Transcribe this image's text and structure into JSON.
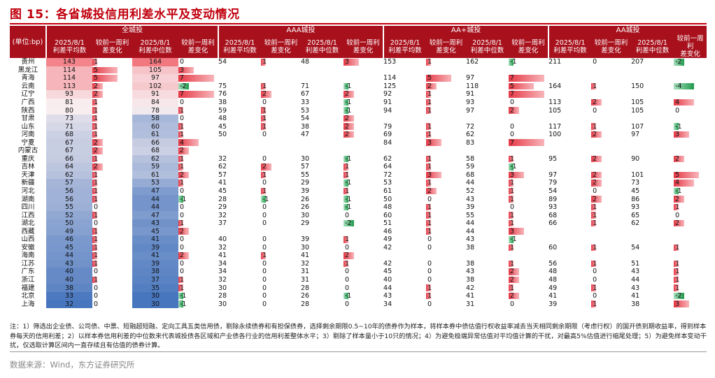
{
  "title": "图 15：各省城投信用利差水平及变动情况",
  "header": {
    "unit": "(单位:bp)",
    "groups": [
      "全城投",
      "AAA城投",
      "AA+城投",
      "AA城投"
    ],
    "sub": [
      "2025/8/1\n利差平均数",
      "较前一周利\n差变化",
      "2025/8/1\n利差中位数",
      "较前一周利\n差变化"
    ]
  },
  "rows": [
    {
      "p": "贵州",
      "all": [
        143,
        1,
        164,
        0
      ],
      "aaa": [
        54,
        1,
        48,
        3
      ],
      "aap": [
        153,
        1,
        162,
        -1
      ],
      "aa": [
        211,
        0,
        207,
        -2
      ]
    },
    {
      "p": "黑龙江",
      "all": [
        114,
        5,
        105,
        3
      ],
      "aaa": [
        null,
        null,
        null,
        null
      ],
      "aap": [
        null,
        null,
        null,
        null
      ],
      "aa": [
        null,
        null,
        null,
        null
      ]
    },
    {
      "p": "青海",
      "all": [
        114,
        5,
        97,
        7
      ],
      "aaa": [
        null,
        null,
        null,
        null
      ],
      "aap": [
        114,
        5,
        97,
        7
      ],
      "aa": [
        null,
        null,
        null,
        null
      ]
    },
    {
      "p": "云南",
      "all": [
        113,
        2,
        102,
        -2
      ],
      "aaa": [
        75,
        1,
        71,
        -1
      ],
      "aap": [
        125,
        2,
        118,
        5
      ],
      "aa": [
        164,
        1,
        150,
        -4
      ]
    },
    {
      "p": "辽宁",
      "all": [
        93,
        2,
        91,
        7
      ],
      "aaa": [
        76,
        2,
        67,
        2
      ],
      "aap": [
        92,
        1,
        91,
        7
      ],
      "aa": [
        null,
        null,
        null,
        null
      ]
    },
    {
      "p": "广西",
      "all": [
        81,
        1,
        84,
        0
      ],
      "aaa": [
        38,
        0,
        33,
        -1
      ],
      "aap": [
        91,
        1,
        93,
        0
      ],
      "aa": [
        113,
        2,
        105,
        4
      ]
    },
    {
      "p": "陕西",
      "all": [
        80,
        1,
        78,
        1
      ],
      "aaa": [
        59,
        1,
        53,
        -1
      ],
      "aap": [
        94,
        1,
        97,
        2
      ],
      "aa": [
        105,
        0,
        105,
        0
      ]
    },
    {
      "p": "甘肃",
      "all": [
        73,
        1,
        58,
        0
      ],
      "aaa": [
        48,
        1,
        54,
        2
      ],
      "aap": [
        null,
        null,
        null,
        null
      ],
      "aa": [
        null,
        null,
        null,
        null
      ]
    },
    {
      "p": "山东",
      "all": [
        71,
        1,
        60,
        1
      ],
      "aaa": [
        45,
        1,
        38,
        2
      ],
      "aap": [
        79,
        1,
        72,
        0
      ],
      "aa": [
        117,
        1,
        107,
        -1
      ]
    },
    {
      "p": "河南",
      "all": [
        68,
        1,
        61,
        1
      ],
      "aaa": [
        50,
        0,
        47,
        2
      ],
      "aap": [
        69,
        1,
        62,
        0
      ],
      "aa": [
        100,
        2,
        97,
        3
      ]
    },
    {
      "p": "宁夏",
      "all": [
        67,
        2,
        66,
        4
      ],
      "aaa": [
        null,
        null,
        null,
        null
      ],
      "aap": [
        84,
        3,
        83,
        7
      ],
      "aa": [
        null,
        null,
        null,
        null
      ]
    },
    {
      "p": "内蒙古",
      "all": [
        67,
        2,
        68,
        2
      ],
      "aaa": [
        null,
        null,
        null,
        null
      ],
      "aap": [
        null,
        null,
        null,
        null
      ],
      "aa": [
        null,
        null,
        null,
        null
      ]
    },
    {
      "p": "重庆",
      "all": [
        66,
        1,
        62,
        1
      ],
      "aaa": [
        32,
        0,
        30,
        -1
      ],
      "aap": [
        62,
        1,
        58,
        1
      ],
      "aa": [
        95,
        2,
        90,
        2
      ]
    },
    {
      "p": "吉林",
      "all": [
        64,
        2,
        59,
        1
      ],
      "aaa": [
        62,
        2,
        57,
        1
      ],
      "aap": [
        64,
        1,
        59,
        -1
      ],
      "aa": [
        null,
        null,
        null,
        null
      ]
    },
    {
      "p": "天津",
      "all": [
        62,
        1,
        61,
        2
      ],
      "aaa": [
        57,
        1,
        55,
        1
      ],
      "aap": [
        72,
        3,
        68,
        3
      ],
      "aa": [
        97,
        2,
        101,
        5
      ]
    },
    {
      "p": "新疆",
      "all": [
        57,
        1,
        53,
        1
      ],
      "aaa": [
        41,
        0,
        29,
        -1
      ],
      "aap": [
        53,
        1,
        44,
        1
      ],
      "aa": [
        79,
        2,
        73,
        4
      ]
    },
    {
      "p": "河北",
      "all": [
        56,
        1,
        47,
        0
      ],
      "aaa": [
        45,
        1,
        39,
        1
      ],
      "aap": [
        61,
        2,
        52,
        1
      ],
      "aa": [
        54,
        0,
        45,
        -1
      ]
    },
    {
      "p": "湖南",
      "all": [
        56,
        1,
        44,
        -1
      ],
      "aaa": [
        28,
        -1,
        26,
        -1
      ],
      "aap": [
        50,
        0,
        43,
        1
      ],
      "aa": [
        89,
        2,
        86,
        2
      ]
    },
    {
      "p": "四川",
      "all": [
        55,
        0,
        44,
        0
      ],
      "aaa": [
        29,
        0,
        26,
        -1
      ],
      "aap": [
        48,
        1,
        39,
        0
      ],
      "aa": [
        93,
        1,
        93,
        1
      ]
    },
    {
      "p": "江西",
      "all": [
        52,
        1,
        47,
        0
      ],
      "aaa": [
        32,
        0,
        30,
        0
      ],
      "aap": [
        60,
        1,
        55,
        1
      ],
      "aa": [
        68,
        1,
        65,
        0
      ]
    },
    {
      "p": "湖北",
      "all": [
        50,
        0,
        43,
        1
      ],
      "aaa": [
        37,
        0,
        29,
        -2
      ],
      "aap": [
        51,
        1,
        44,
        1
      ],
      "aa": [
        66,
        1,
        62,
        2
      ]
    },
    {
      "p": "西藏",
      "all": [
        49,
        1,
        45,
        2
      ],
      "aaa": [
        null,
        null,
        null,
        null
      ],
      "aap": [
        46,
        1,
        44,
        3
      ],
      "aa": [
        null,
        null,
        null,
        null
      ]
    },
    {
      "p": "山西",
      "all": [
        46,
        1,
        41,
        0
      ],
      "aaa": [
        40,
        0,
        39,
        1
      ],
      "aap": [
        49,
        0,
        43,
        -1
      ],
      "aa": [
        null,
        null,
        null,
        null
      ]
    },
    {
      "p": "安徽",
      "all": [
        45,
        1,
        39,
        0
      ],
      "aaa": [
        32,
        0,
        30,
        0
      ],
      "aap": [
        42,
        0,
        38,
        1
      ],
      "aa": [
        60,
        1,
        54,
        1
      ]
    },
    {
      "p": "海南",
      "all": [
        44,
        1,
        41,
        2
      ],
      "aaa": [
        41,
        1,
        41,
        2
      ],
      "aap": [
        null,
        null,
        null,
        null
      ],
      "aa": [
        null,
        null,
        null,
        null
      ]
    },
    {
      "p": "江苏",
      "all": [
        43,
        1,
        39,
        0
      ],
      "aaa": [
        34,
        0,
        32,
        1
      ],
      "aap": [
        42,
        0,
        38,
        1
      ],
      "aa": [
        56,
        1,
        51,
        1
      ]
    },
    {
      "p": "广东",
      "all": [
        40,
        0,
        38,
        0
      ],
      "aaa": [
        34,
        0,
        31,
        0
      ],
      "aap": [
        45,
        0,
        43,
        2
      ],
      "aa": [
        48,
        0,
        43,
        1
      ]
    },
    {
      "p": "浙江",
      "all": [
        40,
        1,
        37,
        1
      ],
      "aaa": [
        32,
        0,
        31,
        0
      ],
      "aap": [
        40,
        0,
        38,
        2
      ],
      "aa": [
        48,
        0,
        44,
        1
      ]
    },
    {
      "p": "福建",
      "all": [
        38,
        0,
        35,
        1
      ],
      "aaa": [
        30,
        0,
        28,
        0
      ],
      "aap": [
        44,
        1,
        42,
        1
      ],
      "aa": [
        49,
        1,
        43,
        1
      ]
    },
    {
      "p": "北京",
      "all": [
        33,
        0,
        30,
        -1
      ],
      "aaa": [
        28,
        0,
        26,
        -1
      ],
      "aap": [
        43,
        1,
        41,
        2
      ],
      "aa": [
        41,
        0,
        41,
        -2
      ]
    },
    {
      "p": "上海",
      "all": [
        32,
        0,
        30,
        -1
      ],
      "aaa": [
        30,
        0,
        28,
        0
      ],
      "aap": [
        34,
        0,
        31,
        0
      ],
      "aa": [
        39,
        1,
        38,
        3
      ]
    }
  ],
  "notes": "注：1）筛选出企业债、公司债、中票、短融超短融、定向工具五类信用债，剔除永续债券和有担保债券，选择剩余期限0.5~10年的债券作为样本，将样本券中债估值行权收益率减去当天相同剩余期限（考虑行权）的国开债到期收益率，得到样本券每天的信用利差；2）以样本券信用利差的中位数来代表城投债各区域和产业债各行业的信用利差整体水平；3）剔除了样本量小于10只的情况；4）为避免极端异常估值对平均值计算的干扰，对最高5%估值进行缩尾处理；5）为避免样本变动干扰，仅选取计算区间内一直存续且有估值的债券计算。",
  "source": "数据来源：Wind，东方证券研究所",
  "colors": {
    "header": "#a8101c",
    "title": "#c0000d",
    "hot": "#f4848a",
    "cold": "#4a7cc0",
    "barPos": "#e8404b",
    "barNeg": "#2eaa5a"
  }
}
